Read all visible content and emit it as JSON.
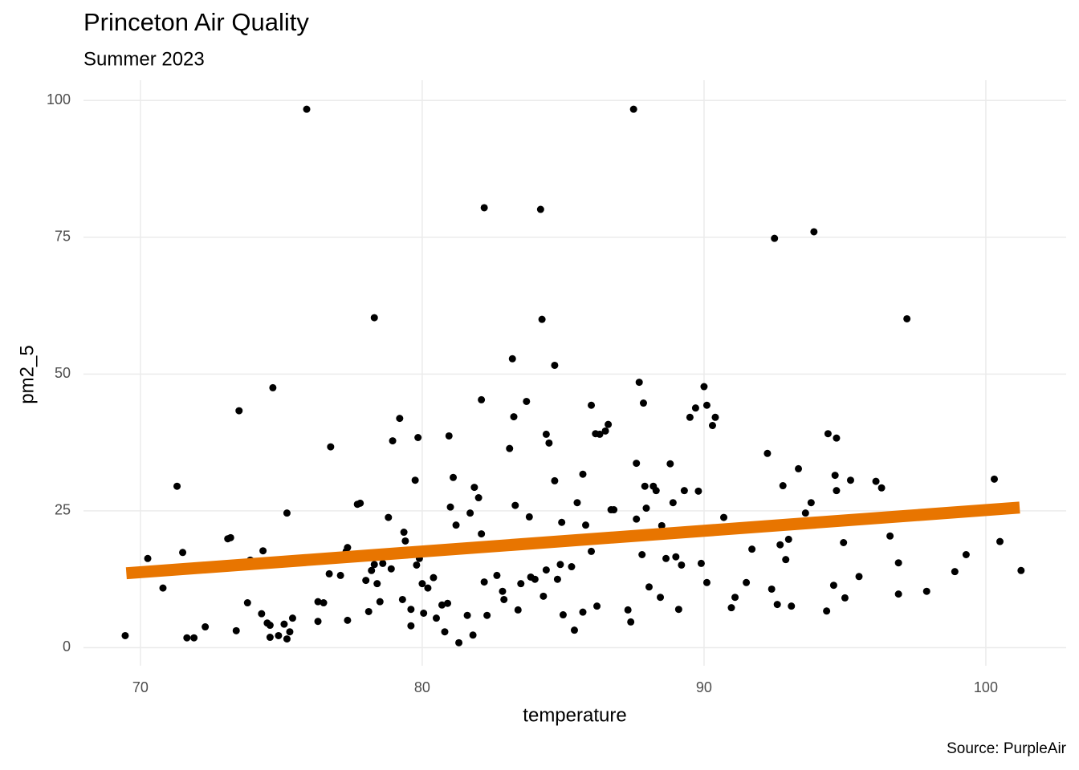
{
  "chart_data": {
    "type": "scatter",
    "title": "Princeton Air Quality",
    "subtitle": "Summer 2023",
    "caption": "Source: PurpleAir",
    "x_label": "temperature",
    "y_label": "pm2_5",
    "xlim": [
      67.98,
      102.85
    ],
    "ylim": [
      -3.3,
      103.7
    ],
    "xticks": [
      70,
      80,
      90,
      100
    ],
    "yticks": [
      0,
      25,
      50,
      75,
      100
    ],
    "grid": true,
    "series": [
      {
        "color": "#000000",
        "x": [
          69.46,
          70.26,
          70.8,
          71.3,
          71.5,
          71.65,
          71.9,
          72.3,
          73.1,
          73.2,
          73.4,
          73.5,
          73.8,
          73.9,
          74.3,
          74.35,
          74.5,
          74.6,
          74.6,
          74.7,
          74.9,
          75.1,
          75.2,
          75.2,
          75.3,
          75.4,
          75.9,
          76.3,
          76.3,
          76.5,
          76.7,
          76.75,
          77.1,
          77.3,
          77.35,
          77.35,
          77.7,
          77.8,
          78.0,
          78.1,
          78.2,
          78.3,
          78.3,
          78.4,
          78.5,
          78.6,
          78.8,
          78.9,
          78.95,
          79.2,
          79.3,
          79.35,
          79.4,
          79.6,
          79.6,
          79.75,
          79.8,
          79.85,
          79.9,
          80.0,
          80.05,
          80.2,
          80.4,
          80.5,
          80.7,
          80.8,
          80.9,
          80.95,
          81.0,
          81.1,
          81.2,
          81.3,
          81.6,
          81.7,
          81.8,
          81.85,
          82.0,
          82.1,
          82.1,
          82.2,
          82.2,
          82.3,
          82.3,
          82.65,
          82.85,
          82.9,
          83.1,
          83.2,
          83.25,
          83.3,
          83.4,
          83.5,
          83.7,
          83.8,
          83.85,
          84.0,
          84.2,
          84.25,
          84.3,
          84.4,
          84.4,
          84.5,
          84.7,
          84.7,
          84.8,
          84.9,
          84.95,
          85.0,
          85.3,
          85.4,
          85.5,
          85.7,
          85.7,
          85.8,
          86.0,
          86.0,
          86.15,
          86.2,
          86.3,
          86.5,
          86.6,
          86.7,
          86.8,
          87.3,
          87.4,
          87.5,
          87.6,
          87.6,
          87.7,
          87.8,
          87.85,
          87.9,
          87.95,
          88.05,
          88.2,
          88.3,
          88.45,
          88.5,
          88.65,
          88.8,
          88.9,
          89.0,
          89.1,
          89.2,
          89.3,
          89.5,
          89.7,
          89.8,
          89.9,
          90.0,
          90.1,
          90.1,
          90.3,
          90.4,
          90.7,
          90.97,
          91.1,
          91.5,
          91.7,
          92.25,
          92.4,
          92.5,
          92.6,
          92.7,
          92.8,
          92.9,
          93.0,
          93.1,
          93.35,
          93.6,
          93.8,
          93.9,
          94.35,
          94.4,
          94.6,
          94.65,
          94.7,
          94.7,
          94.95,
          95.0,
          95.2,
          95.5,
          96.1,
          96.3,
          96.6,
          96.9,
          96.9,
          97.2,
          97.9,
          98.9,
          99.3,
          100.3,
          100.5,
          101.25
        ],
        "y": [
          2.2,
          16.3,
          10.9,
          29.5,
          17.4,
          1.8,
          1.8,
          3.8,
          19.9,
          20.1,
          3.1,
          43.3,
          8.2,
          16.0,
          6.2,
          17.7,
          4.5,
          1.9,
          4.1,
          47.5,
          2.2,
          4.3,
          1.6,
          24.6,
          2.9,
          5.4,
          98.4,
          8.4,
          4.8,
          8.2,
          13.5,
          36.7,
          13.2,
          17.6,
          5.0,
          18.3,
          26.2,
          26.4,
          12.3,
          6.6,
          14.1,
          60.3,
          15.2,
          11.7,
          8.4,
          15.4,
          23.8,
          14.4,
          37.8,
          41.9,
          8.8,
          21.1,
          19.5,
          7.0,
          4.0,
          30.6,
          15.1,
          38.4,
          16.3,
          11.7,
          6.3,
          10.9,
          12.8,
          5.4,
          7.8,
          2.9,
          8.1,
          38.7,
          25.7,
          31.1,
          22.4,
          0.9,
          5.9,
          24.6,
          2.3,
          29.3,
          27.4,
          20.8,
          45.3,
          12.0,
          80.4,
          18.3,
          5.9,
          13.2,
          10.3,
          8.8,
          36.4,
          52.8,
          42.2,
          26.0,
          6.9,
          11.7,
          45.0,
          23.9,
          12.9,
          12.5,
          80.1,
          60.0,
          9.4,
          14.2,
          39.0,
          37.4,
          51.6,
          30.5,
          12.5,
          15.2,
          22.9,
          6.0,
          14.8,
          3.2,
          26.5,
          6.5,
          31.7,
          22.4,
          44.3,
          17.6,
          39.1,
          7.6,
          39.0,
          39.6,
          40.8,
          25.2,
          25.2,
          6.9,
          4.7,
          98.4,
          23.5,
          33.7,
          48.5,
          17.0,
          44.7,
          29.5,
          25.5,
          11.1,
          29.5,
          28.7,
          9.2,
          22.3,
          16.3,
          33.6,
          26.5,
          16.6,
          7.0,
          15.1,
          28.7,
          42.1,
          43.8,
          28.6,
          15.4,
          47.7,
          44.3,
          11.9,
          40.6,
          42.1,
          23.8,
          7.3,
          9.2,
          11.9,
          18.0,
          35.5,
          10.7,
          74.8,
          7.9,
          18.8,
          29.6,
          16.1,
          19.8,
          7.6,
          32.7,
          24.6,
          26.5,
          76.0,
          6.7,
          39.1,
          11.4,
          31.5,
          28.7,
          38.3,
          19.2,
          9.1,
          30.6,
          13.0,
          30.4,
          29.2,
          20.4,
          15.5,
          9.8,
          60.1,
          10.3,
          13.9,
          17.0,
          30.8,
          19.4,
          14.1
        ]
      }
    ],
    "trend": {
      "x": [
        69.5,
        101.2
      ],
      "y": [
        13.6,
        25.6
      ],
      "color": "#e87500"
    }
  }
}
